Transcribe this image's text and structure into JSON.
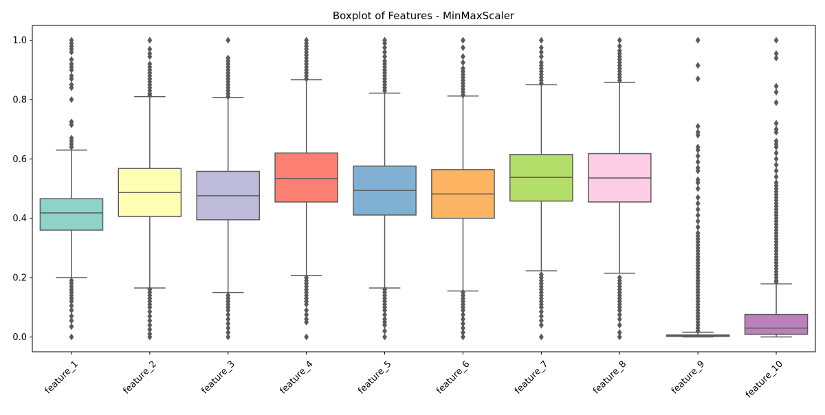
{
  "chart_data": {
    "type": "box",
    "title": "Boxplot of Features - MinMaxScaler",
    "xlabel": "",
    "ylabel": "",
    "ylim": [
      -0.05,
      1.05
    ],
    "yticks": [
      0.0,
      0.2,
      0.4,
      0.6,
      0.8,
      1.0
    ],
    "ytick_labels": [
      "0.0",
      "0.2",
      "0.4",
      "0.6",
      "0.8",
      "1.0"
    ],
    "grid": false,
    "legend": "none",
    "outlier_marker": "diamond",
    "categories": [
      "feature_1",
      "feature_2",
      "feature_3",
      "feature_4",
      "feature_5",
      "feature_6",
      "feature_7",
      "feature_8",
      "feature_9",
      "feature_10"
    ],
    "boxes": [
      {
        "name": "feature_1",
        "color": "#8dd3c7",
        "whisker_low": 0.2,
        "q1": 0.36,
        "median": 0.418,
        "q3": 0.466,
        "whisker_high": 0.63,
        "outliers_low": [
          0.0,
          0.035,
          0.055,
          0.07,
          0.09,
          0.105,
          0.12,
          0.13,
          0.14,
          0.15,
          0.16,
          0.17,
          0.18,
          0.19
        ],
        "outliers_high": [
          0.64,
          0.65,
          0.66,
          0.67,
          0.715,
          0.725,
          0.8,
          0.84,
          0.85,
          0.87,
          0.88,
          0.9,
          0.91,
          0.92,
          0.935,
          0.96,
          0.97,
          0.98,
          0.99,
          1.0
        ]
      },
      {
        "name": "feature_2",
        "color": "#ffffb3",
        "whisker_low": 0.165,
        "q1": 0.406,
        "median": 0.487,
        "q3": 0.568,
        "whisker_high": 0.81,
        "outliers_low": [
          0.0,
          0.01,
          0.025,
          0.04,
          0.055,
          0.07,
          0.085,
          0.1,
          0.11,
          0.12,
          0.13,
          0.14,
          0.15,
          0.16
        ],
        "outliers_high": [
          0.815,
          0.82,
          0.83,
          0.84,
          0.85,
          0.86,
          0.87,
          0.88,
          0.89,
          0.9,
          0.91,
          0.92,
          0.945,
          0.955,
          0.97,
          1.0
        ]
      },
      {
        "name": "feature_3",
        "color": "#bebada",
        "whisker_low": 0.15,
        "q1": 0.395,
        "median": 0.476,
        "q3": 0.558,
        "whisker_high": 0.807,
        "outliers_low": [
          0.0,
          0.015,
          0.03,
          0.045,
          0.06,
          0.075,
          0.09,
          0.1,
          0.11,
          0.12,
          0.13,
          0.14
        ],
        "outliers_high": [
          0.81,
          0.82,
          0.83,
          0.84,
          0.85,
          0.86,
          0.87,
          0.88,
          0.89,
          0.9,
          0.91,
          0.92,
          0.93,
          0.94,
          1.0
        ]
      },
      {
        "name": "feature_4",
        "color": "#fb8072",
        "whisker_low": 0.207,
        "q1": 0.455,
        "median": 0.534,
        "q3": 0.62,
        "whisker_high": 0.867,
        "outliers_low": [
          0.0,
          0.05,
          0.06,
          0.075,
          0.09,
          0.11,
          0.12,
          0.13,
          0.14,
          0.15,
          0.16,
          0.17,
          0.18,
          0.19,
          0.2
        ],
        "outliers_high": [
          0.87,
          0.88,
          0.89,
          0.9,
          0.91,
          0.92,
          0.93,
          0.94,
          0.95,
          0.96,
          0.97,
          0.98,
          0.99,
          1.0
        ]
      },
      {
        "name": "feature_5",
        "color": "#80b1d3",
        "whisker_low": 0.165,
        "q1": 0.411,
        "median": 0.494,
        "q3": 0.576,
        "whisker_high": 0.822,
        "outliers_low": [
          0.0,
          0.02,
          0.04,
          0.05,
          0.06,
          0.075,
          0.09,
          0.1,
          0.11,
          0.12,
          0.13,
          0.14,
          0.15,
          0.16
        ],
        "outliers_high": [
          0.83,
          0.84,
          0.85,
          0.86,
          0.87,
          0.88,
          0.89,
          0.9,
          0.91,
          0.92,
          0.93,
          0.945,
          0.96,
          0.975,
          0.99,
          1.0
        ]
      },
      {
        "name": "feature_6",
        "color": "#fdb462",
        "whisker_low": 0.155,
        "q1": 0.4,
        "median": 0.482,
        "q3": 0.564,
        "whisker_high": 0.812,
        "outliers_low": [
          0.0,
          0.015,
          0.03,
          0.045,
          0.06,
          0.075,
          0.09,
          0.1,
          0.11,
          0.12,
          0.13,
          0.14,
          0.15
        ],
        "outliers_high": [
          0.815,
          0.825,
          0.835,
          0.845,
          0.855,
          0.865,
          0.875,
          0.885,
          0.895,
          0.905,
          0.925,
          0.945,
          0.975,
          1.0
        ]
      },
      {
        "name": "feature_7",
        "color": "#b3de69",
        "whisker_low": 0.223,
        "q1": 0.458,
        "median": 0.538,
        "q3": 0.615,
        "whisker_high": 0.85,
        "outliers_low": [
          0.0,
          0.04,
          0.055,
          0.07,
          0.085,
          0.1,
          0.11,
          0.12,
          0.13,
          0.14,
          0.15,
          0.16,
          0.17,
          0.18,
          0.19,
          0.2,
          0.21
        ],
        "outliers_high": [
          0.855,
          0.865,
          0.875,
          0.885,
          0.895,
          0.905,
          0.915,
          0.925,
          0.945,
          0.96,
          0.975,
          1.0
        ]
      },
      {
        "name": "feature_8",
        "color": "#fccde5",
        "whisker_low": 0.215,
        "q1": 0.455,
        "median": 0.536,
        "q3": 0.618,
        "whisker_high": 0.858,
        "outliers_low": [
          0.0,
          0.015,
          0.04,
          0.06,
          0.075,
          0.09,
          0.1,
          0.11,
          0.12,
          0.13,
          0.14,
          0.15,
          0.16,
          0.17,
          0.18,
          0.19,
          0.2
        ],
        "outliers_high": [
          0.865,
          0.875,
          0.885,
          0.895,
          0.905,
          0.915,
          0.925,
          0.935,
          0.945,
          0.955,
          0.965,
          0.98,
          1.0
        ]
      },
      {
        "name": "feature_9",
        "color": "#d9d9d9",
        "whisker_low": 0.0,
        "q1": 0.002,
        "median": 0.004,
        "q3": 0.007,
        "whisker_high": 0.016,
        "outliers_low": [],
        "outliers_high": [
          0.02,
          0.03,
          0.04,
          0.05,
          0.06,
          0.07,
          0.08,
          0.09,
          0.1,
          0.11,
          0.12,
          0.13,
          0.14,
          0.15,
          0.16,
          0.17,
          0.18,
          0.19,
          0.2,
          0.21,
          0.22,
          0.23,
          0.24,
          0.25,
          0.26,
          0.27,
          0.28,
          0.29,
          0.3,
          0.31,
          0.32,
          0.33,
          0.34,
          0.35,
          0.37,
          0.39,
          0.41,
          0.43,
          0.45,
          0.47,
          0.5,
          0.52,
          0.53,
          0.56,
          0.57,
          0.59,
          0.61,
          0.63,
          0.64,
          0.68,
          0.69,
          0.71,
          0.87,
          0.915,
          1.0
        ]
      },
      {
        "name": "feature_10",
        "color": "#bc80bd",
        "whisker_low": 0.0,
        "q1": 0.009,
        "median": 0.03,
        "q3": 0.076,
        "whisker_high": 0.179,
        "outliers_low": [],
        "outliers_high": [
          0.185,
          0.19,
          0.2,
          0.21,
          0.22,
          0.23,
          0.24,
          0.25,
          0.26,
          0.27,
          0.28,
          0.29,
          0.3,
          0.31,
          0.32,
          0.33,
          0.34,
          0.35,
          0.36,
          0.37,
          0.38,
          0.39,
          0.4,
          0.41,
          0.42,
          0.43,
          0.44,
          0.45,
          0.46,
          0.47,
          0.48,
          0.49,
          0.5,
          0.51,
          0.52,
          0.54,
          0.56,
          0.58,
          0.6,
          0.62,
          0.64,
          0.65,
          0.66,
          0.69,
          0.7,
          0.72,
          0.79,
          0.825,
          0.845,
          0.94,
          0.955,
          1.0
        ]
      }
    ],
    "style": {
      "line_color": "#5a5a5a",
      "axis_color": "#000000",
      "background": "#ffffff"
    }
  }
}
